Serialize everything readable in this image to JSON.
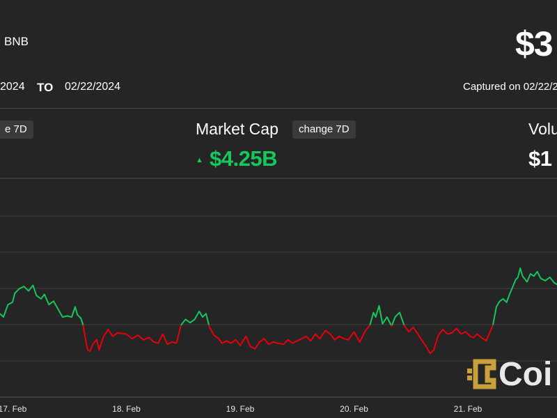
{
  "header": {
    "asset": "BNB",
    "price": "$3",
    "date_from": "2024",
    "to_label": "TO",
    "date_to": "02/22/2024",
    "captured": "Captured on 02/22/2"
  },
  "metrics": {
    "left_chip": "e 7D",
    "center_title": "Market Cap",
    "center_chip": "change 7D",
    "center_arrow": "▲",
    "center_value": "$4.25B",
    "right_title": "Volu",
    "right_value": "$1"
  },
  "colors": {
    "background": "#252525",
    "up": "#16c75b",
    "down": "#e8000b",
    "grid": "#4a4a4a",
    "logo": "#c8a03c"
  },
  "watermark": {
    "text": "Coi",
    "icon": "coindesk-logo-icon"
  },
  "chart_data": {
    "type": "line",
    "x_unit": "days from 17 Feb 2024 00:00",
    "tick_labels": [
      "17. Feb",
      "18. Feb",
      "19. Feb",
      "20. Feb",
      "21. Feb"
    ],
    "tick_values": [
      0,
      1,
      2,
      3,
      4
    ],
    "xlim": [
      -0.11,
      4.8
    ],
    "grid": "horizontal",
    "baseline_y": 50,
    "ylim": [
      0,
      100
    ],
    "color_rule": "green above baseline, red below",
    "points": [
      [
        -0.11,
        60
      ],
      [
        -0.08,
        57
      ],
      [
        -0.04,
        68
      ],
      [
        0.0,
        70
      ],
      [
        0.02,
        78
      ],
      [
        0.06,
        82
      ],
      [
        0.1,
        84
      ],
      [
        0.14,
        80
      ],
      [
        0.18,
        85
      ],
      [
        0.21,
        76
      ],
      [
        0.25,
        73
      ],
      [
        0.28,
        77
      ],
      [
        0.32,
        68
      ],
      [
        0.36,
        71
      ],
      [
        0.4,
        64
      ],
      [
        0.44,
        57
      ],
      [
        0.48,
        58
      ],
      [
        0.52,
        57
      ],
      [
        0.55,
        66
      ],
      [
        0.57,
        59
      ],
      [
        0.6,
        56
      ],
      [
        0.62,
        50
      ],
      [
        0.64,
        38
      ],
      [
        0.66,
        28
      ],
      [
        0.68,
        27
      ],
      [
        0.71,
        34
      ],
      [
        0.74,
        37
      ],
      [
        0.76,
        28
      ],
      [
        0.8,
        40
      ],
      [
        0.84,
        46
      ],
      [
        0.88,
        40
      ],
      [
        0.92,
        43
      ],
      [
        1.0,
        42
      ],
      [
        1.05,
        38
      ],
      [
        1.1,
        41
      ],
      [
        1.15,
        37
      ],
      [
        1.2,
        39
      ],
      [
        1.24,
        35
      ],
      [
        1.28,
        34
      ],
      [
        1.32,
        42
      ],
      [
        1.36,
        33
      ],
      [
        1.4,
        35
      ],
      [
        1.44,
        34
      ],
      [
        1.48,
        50
      ],
      [
        1.52,
        55
      ],
      [
        1.56,
        52
      ],
      [
        1.6,
        55
      ],
      [
        1.64,
        62
      ],
      [
        1.67,
        57
      ],
      [
        1.7,
        60
      ],
      [
        1.73,
        48
      ],
      [
        1.77,
        41
      ],
      [
        1.81,
        38
      ],
      [
        1.84,
        34
      ],
      [
        1.88,
        36
      ],
      [
        1.92,
        34
      ],
      [
        1.96,
        37
      ],
      [
        2.0,
        32
      ],
      [
        2.05,
        40
      ],
      [
        2.09,
        31
      ],
      [
        2.13,
        29
      ],
      [
        2.17,
        35
      ],
      [
        2.21,
        38
      ],
      [
        2.25,
        33
      ],
      [
        2.29,
        35
      ],
      [
        2.33,
        34
      ],
      [
        2.38,
        33
      ],
      [
        2.42,
        37
      ],
      [
        2.46,
        34
      ],
      [
        2.5,
        36
      ],
      [
        2.54,
        38
      ],
      [
        2.58,
        40
      ],
      [
        2.62,
        36
      ],
      [
        2.66,
        42
      ],
      [
        2.7,
        38
      ],
      [
        2.75,
        45
      ],
      [
        2.79,
        42
      ],
      [
        2.83,
        37
      ],
      [
        2.87,
        40
      ],
      [
        2.91,
        38
      ],
      [
        2.95,
        37
      ],
      [
        3.0,
        44
      ],
      [
        3.05,
        35
      ],
      [
        3.1,
        45
      ],
      [
        3.14,
        50
      ],
      [
        3.17,
        61
      ],
      [
        3.19,
        57
      ],
      [
        3.22,
        67
      ],
      [
        3.25,
        51
      ],
      [
        3.29,
        57
      ],
      [
        3.33,
        49
      ],
      [
        3.36,
        57
      ],
      [
        3.4,
        61
      ],
      [
        3.44,
        50
      ],
      [
        3.48,
        44
      ],
      [
        3.52,
        48
      ],
      [
        3.56,
        42
      ],
      [
        3.6,
        36
      ],
      [
        3.64,
        30
      ],
      [
        3.67,
        25
      ],
      [
        3.7,
        28
      ],
      [
        3.74,
        41
      ],
      [
        3.78,
        46
      ],
      [
        3.82,
        42
      ],
      [
        3.86,
        43
      ],
      [
        3.9,
        47
      ],
      [
        3.94,
        42
      ],
      [
        3.98,
        44
      ],
      [
        4.02,
        40
      ],
      [
        4.05,
        39
      ],
      [
        4.08,
        42
      ],
      [
        4.12,
        39
      ],
      [
        4.16,
        36
      ],
      [
        4.2,
        45
      ],
      [
        4.22,
        50
      ],
      [
        4.25,
        66
      ],
      [
        4.28,
        71
      ],
      [
        4.31,
        73
      ],
      [
        4.34,
        70
      ],
      [
        4.37,
        78
      ],
      [
        4.4,
        85
      ],
      [
        4.42,
        90
      ],
      [
        4.44,
        92
      ],
      [
        4.46,
        100
      ],
      [
        4.48,
        93
      ],
      [
        4.52,
        88
      ],
      [
        4.55,
        95
      ],
      [
        4.58,
        93
      ],
      [
        4.61,
        97
      ],
      [
        4.64,
        91
      ],
      [
        4.68,
        89
      ],
      [
        4.72,
        92
      ],
      [
        4.76,
        87
      ],
      [
        4.8,
        85
      ]
    ]
  }
}
